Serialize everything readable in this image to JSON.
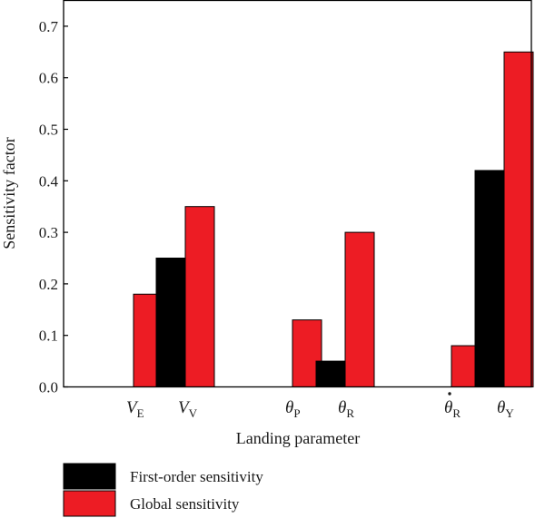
{
  "chart_data": {
    "type": "bar",
    "title": "",
    "xlabel": "Landing parameter",
    "ylabel": "Sensitivity factor",
    "ylim": [
      0,
      0.75
    ],
    "yticks": [
      "0.0",
      "0.1",
      "0.2",
      "0.3",
      "0.4",
      "0.5",
      "0.6",
      "0.7"
    ],
    "grid": false,
    "legend_position": "bottom-left",
    "categories": [
      {
        "main": "V",
        "sub": "E",
        "dot": false
      },
      {
        "main": "V",
        "sub": "V",
        "dot": false
      },
      {
        "main": "θ",
        "sub": "P",
        "dot": false
      },
      {
        "main": "θ",
        "sub": "R",
        "dot": false
      },
      {
        "main": "θ",
        "sub": "R",
        "dot": true
      },
      {
        "main": "θ",
        "sub": "Y",
        "dot": false
      }
    ],
    "series": [
      {
        "name": "First-order sensitivity",
        "color": "#000000",
        "values": [
          0,
          0.25,
          0,
          0.05,
          0,
          0.42
        ]
      },
      {
        "name": "Global sensitivity",
        "color": "#ed1c24",
        "values": [
          0.18,
          0.35,
          0.13,
          0.3,
          0.08,
          0.65
        ]
      }
    ]
  }
}
